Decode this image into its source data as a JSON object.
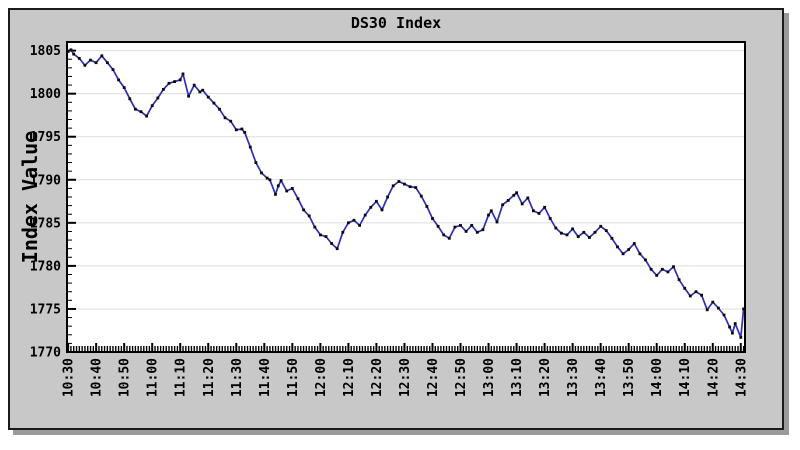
{
  "page": {
    "background": "#ffffff"
  },
  "panel": {
    "background": "#c8c8c8",
    "border_color": "#1b1b1b",
    "shadow_color": "#9a9a9a",
    "plot_background": "#ffffff",
    "grid_color": "#dedede",
    "frame_color": "#000000",
    "tick_color": "#000000",
    "text_color": "#000000"
  },
  "chart_data": {
    "type": "line",
    "title": "DS30 Index",
    "xlabel": "",
    "ylabel": "Index Value",
    "legend": "none",
    "grid": "horizontal-major",
    "ylim": [
      1770,
      1806
    ],
    "y_major_step": 5,
    "y_minor_step": 1,
    "x_tick_labels": [
      "10:30",
      "10:40",
      "10:50",
      "11:00",
      "11:10",
      "11:20",
      "11:30",
      "11:40",
      "11:50",
      "12:00",
      "12:10",
      "12:20",
      "12:30",
      "12:40",
      "12:50",
      "13:00",
      "13:10",
      "13:20",
      "13:30",
      "13:40",
      "13:50",
      "14:00",
      "14:10",
      "14:20",
      "14:30"
    ],
    "x_major_step_minutes": 10,
    "x_minor_step_minutes": 1,
    "xlim_offset_minutes": [
      -0.4,
      241.5
    ],
    "series": [
      {
        "name": "DS30",
        "color": "#2e2eb8",
        "marker": "square",
        "marker_color": "#0a0a0a",
        "points": [
          [
            "10:30",
            1804.9
          ],
          [
            "10:31",
            1805.1
          ],
          [
            "10:32",
            1804.6
          ],
          [
            "10:34",
            1804.1
          ],
          [
            "10:36",
            1803.3
          ],
          [
            "10:38",
            1803.9
          ],
          [
            "10:40",
            1803.6
          ],
          [
            "10:42",
            1804.4
          ],
          [
            "10:44",
            1803.6
          ],
          [
            "10:46",
            1802.8
          ],
          [
            "10:48",
            1801.6
          ],
          [
            "10:50",
            1800.7
          ],
          [
            "10:52",
            1799.4
          ],
          [
            "10:54",
            1798.2
          ],
          [
            "10:56",
            1797.9
          ],
          [
            "10:58",
            1797.4
          ],
          [
            "11:00",
            1798.6
          ],
          [
            "11:02",
            1799.5
          ],
          [
            "11:04",
            1800.5
          ],
          [
            "11:06",
            1801.2
          ],
          [
            "11:08",
            1801.4
          ],
          [
            "11:10",
            1801.6
          ],
          [
            "11:11",
            1802.3
          ],
          [
            "11:13",
            1799.7
          ],
          [
            "11:15",
            1801.0
          ],
          [
            "11:17",
            1800.2
          ],
          [
            "11:18",
            1800.4
          ],
          [
            "11:20",
            1799.6
          ],
          [
            "11:22",
            1798.9
          ],
          [
            "11:24",
            1798.2
          ],
          [
            "11:26",
            1797.2
          ],
          [
            "11:28",
            1796.8
          ],
          [
            "11:30",
            1795.8
          ],
          [
            "11:32",
            1795.9
          ],
          [
            "11:33",
            1795.5
          ],
          [
            "11:35",
            1793.8
          ],
          [
            "11:37",
            1792.0
          ],
          [
            "11:39",
            1790.8
          ],
          [
            "11:41",
            1790.2
          ],
          [
            "11:42",
            1790.0
          ],
          [
            "11:44",
            1788.3
          ],
          [
            "11:45",
            1789.3
          ],
          [
            "11:46",
            1789.9
          ],
          [
            "11:48",
            1788.7
          ],
          [
            "11:50",
            1789.0
          ],
          [
            "11:52",
            1787.8
          ],
          [
            "11:54",
            1786.5
          ],
          [
            "11:56",
            1785.8
          ],
          [
            "11:58",
            1784.5
          ],
          [
            "12:00",
            1783.6
          ],
          [
            "12:02",
            1783.4
          ],
          [
            "12:04",
            1782.6
          ],
          [
            "12:06",
            1782.0
          ],
          [
            "12:08",
            1783.9
          ],
          [
            "12:10",
            1785.0
          ],
          [
            "12:12",
            1785.3
          ],
          [
            "12:14",
            1784.7
          ],
          [
            "12:16",
            1785.9
          ],
          [
            "12:18",
            1786.8
          ],
          [
            "12:20",
            1787.5
          ],
          [
            "12:22",
            1786.5
          ],
          [
            "12:24",
            1788.0
          ],
          [
            "12:26",
            1789.3
          ],
          [
            "12:28",
            1789.8
          ],
          [
            "12:30",
            1789.5
          ],
          [
            "12:32",
            1789.2
          ],
          [
            "12:34",
            1789.1
          ],
          [
            "12:36",
            1788.1
          ],
          [
            "12:38",
            1786.9
          ],
          [
            "12:40",
            1785.5
          ],
          [
            "12:42",
            1784.6
          ],
          [
            "12:44",
            1783.6
          ],
          [
            "12:46",
            1783.2
          ],
          [
            "12:48",
            1784.5
          ],
          [
            "12:50",
            1784.7
          ],
          [
            "12:52",
            1784.0
          ],
          [
            "12:54",
            1784.7
          ],
          [
            "12:56",
            1783.9
          ],
          [
            "12:58",
            1784.2
          ],
          [
            "13:00",
            1785.9
          ],
          [
            "13:01",
            1786.4
          ],
          [
            "13:03",
            1785.1
          ],
          [
            "13:05",
            1787.1
          ],
          [
            "13:07",
            1787.6
          ],
          [
            "13:09",
            1788.2
          ],
          [
            "13:10",
            1788.5
          ],
          [
            "13:12",
            1787.2
          ],
          [
            "13:14",
            1787.9
          ],
          [
            "13:16",
            1786.4
          ],
          [
            "13:18",
            1786.1
          ],
          [
            "13:20",
            1786.8
          ],
          [
            "13:22",
            1785.5
          ],
          [
            "13:24",
            1784.4
          ],
          [
            "13:26",
            1783.8
          ],
          [
            "13:28",
            1783.6
          ],
          [
            "13:30",
            1784.3
          ],
          [
            "13:32",
            1783.4
          ],
          [
            "13:34",
            1783.9
          ],
          [
            "13:36",
            1783.3
          ],
          [
            "13:38",
            1783.9
          ],
          [
            "13:40",
            1784.6
          ],
          [
            "13:42",
            1784.1
          ],
          [
            "13:44",
            1783.2
          ],
          [
            "13:46",
            1782.2
          ],
          [
            "13:48",
            1781.4
          ],
          [
            "13:50",
            1781.9
          ],
          [
            "13:52",
            1782.6
          ],
          [
            "13:54",
            1781.4
          ],
          [
            "13:56",
            1780.7
          ],
          [
            "13:58",
            1779.6
          ],
          [
            "14:00",
            1778.9
          ],
          [
            "14:02",
            1779.6
          ],
          [
            "14:04",
            1779.3
          ],
          [
            "14:06",
            1779.9
          ],
          [
            "14:08",
            1778.4
          ],
          [
            "14:10",
            1777.4
          ],
          [
            "14:12",
            1776.5
          ],
          [
            "14:14",
            1777.0
          ],
          [
            "14:16",
            1776.6
          ],
          [
            "14:18",
            1774.9
          ],
          [
            "14:20",
            1775.8
          ],
          [
            "14:22",
            1775.1
          ],
          [
            "14:24",
            1774.3
          ],
          [
            "14:26",
            1772.9
          ],
          [
            "14:27",
            1772.2
          ],
          [
            "14:28",
            1773.3
          ],
          [
            "14:30",
            1771.7
          ],
          [
            "14:31",
            1775.0
          ]
        ]
      }
    ]
  }
}
